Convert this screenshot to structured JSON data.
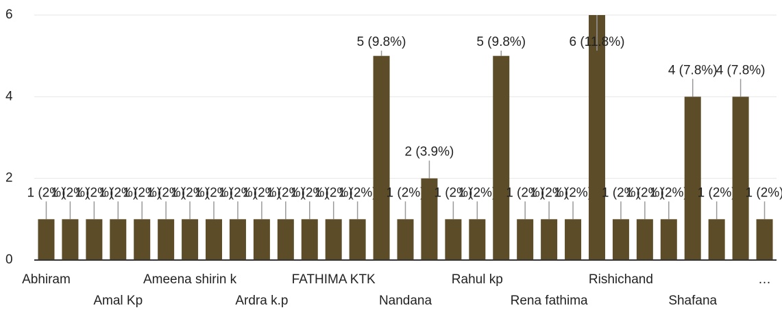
{
  "chart_data": {
    "type": "bar",
    "categories": [
      "Abhiram",
      null,
      null,
      "Amal Kp",
      null,
      null,
      "Ameena shirin k",
      null,
      null,
      "Ardra k.p",
      null,
      null,
      "FATHIMA KTK",
      null,
      null,
      "Nandana",
      null,
      null,
      "Rahul kp",
      null,
      null,
      "Rena fathima",
      null,
      null,
      "Rishichand",
      null,
      null,
      "Shafana",
      null,
      null,
      "…"
    ],
    "values": [
      1,
      1,
      1,
      1,
      1,
      1,
      1,
      1,
      1,
      1,
      1,
      1,
      1,
      1,
      5,
      1,
      2,
      1,
      1,
      5,
      1,
      1,
      1,
      6,
      1,
      1,
      1,
      4,
      1,
      4,
      1
    ],
    "value_labels": [
      "1 (2%)",
      "1 (2%)",
      "1 (2%)",
      "1 (2%)",
      "1 (2%)",
      "1 (2%)",
      "1 (2%)",
      "1 (2%)",
      "1 (2%)",
      "1 (2%)",
      "1 (2%)",
      "1 (2%)",
      "1 (2%)",
      "1 (2%)",
      "5 (9.8%)",
      "1 (2%)",
      "2 (3.9%)",
      "1 (2%)",
      "1 (2%)",
      "5 (9.8%)",
      "1 (2%)",
      "1 (2%)",
      "1 (2%)",
      "6 (11.8%)",
      "1 (2%)",
      "1 (2%)",
      "1 (2%)",
      "4 (7.8%)",
      "1 (2%)",
      "4 (7.8%)",
      "1 (2%)"
    ],
    "color": "#5c4d28",
    "ylim": [
      0,
      6
    ],
    "yticks": [
      0,
      2,
      4,
      6
    ],
    "grid": true
  }
}
